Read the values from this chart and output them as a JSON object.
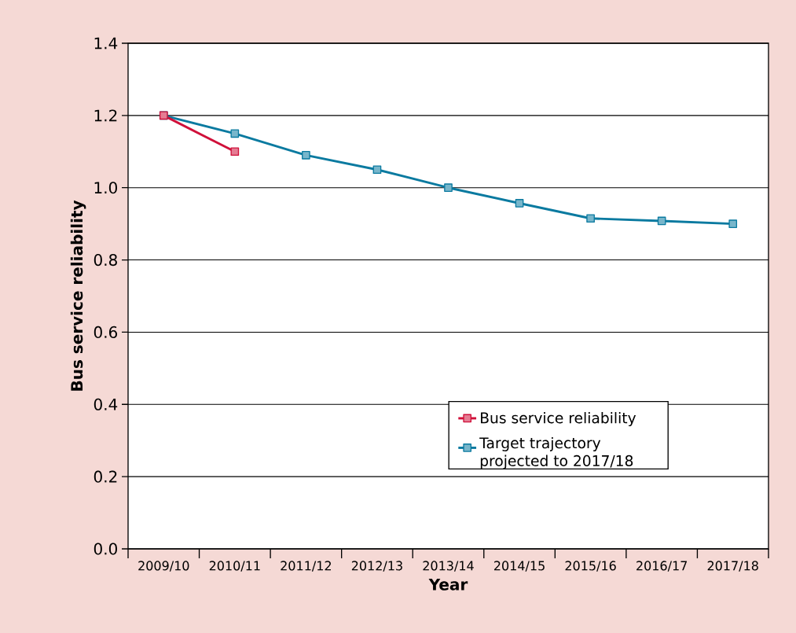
{
  "chart_data": {
    "type": "line",
    "xlabel": "Year",
    "ylabel": "Bus service reliability",
    "categories": [
      "2009/10",
      "2010/11",
      "2011/12",
      "2012/13",
      "2013/14",
      "2014/15",
      "2015/16",
      "2016/17",
      "2017/18"
    ],
    "series": [
      {
        "name": "Bus service reliability",
        "color": "#d0103a",
        "values": [
          1.2,
          1.1,
          null,
          null,
          null,
          null,
          null,
          null,
          null
        ]
      },
      {
        "name": "Target trajectory projected to 2017/18",
        "color": "#0a7aa0",
        "values": [
          1.2,
          1.15,
          1.09,
          1.05,
          1.0,
          0.957,
          0.915,
          0.908,
          0.9
        ]
      }
    ],
    "ylim": [
      0,
      1.4
    ],
    "yticks": [
      {
        "value": 0,
        "label": "0.0"
      },
      0.2,
      0.4,
      0.6,
      0.8,
      {
        "value": 1,
        "label": "1.0"
      },
      1.2,
      1.4
    ],
    "grid": "y",
    "legend": "bottom right",
    "marker": "square",
    "line_style": "solid"
  }
}
